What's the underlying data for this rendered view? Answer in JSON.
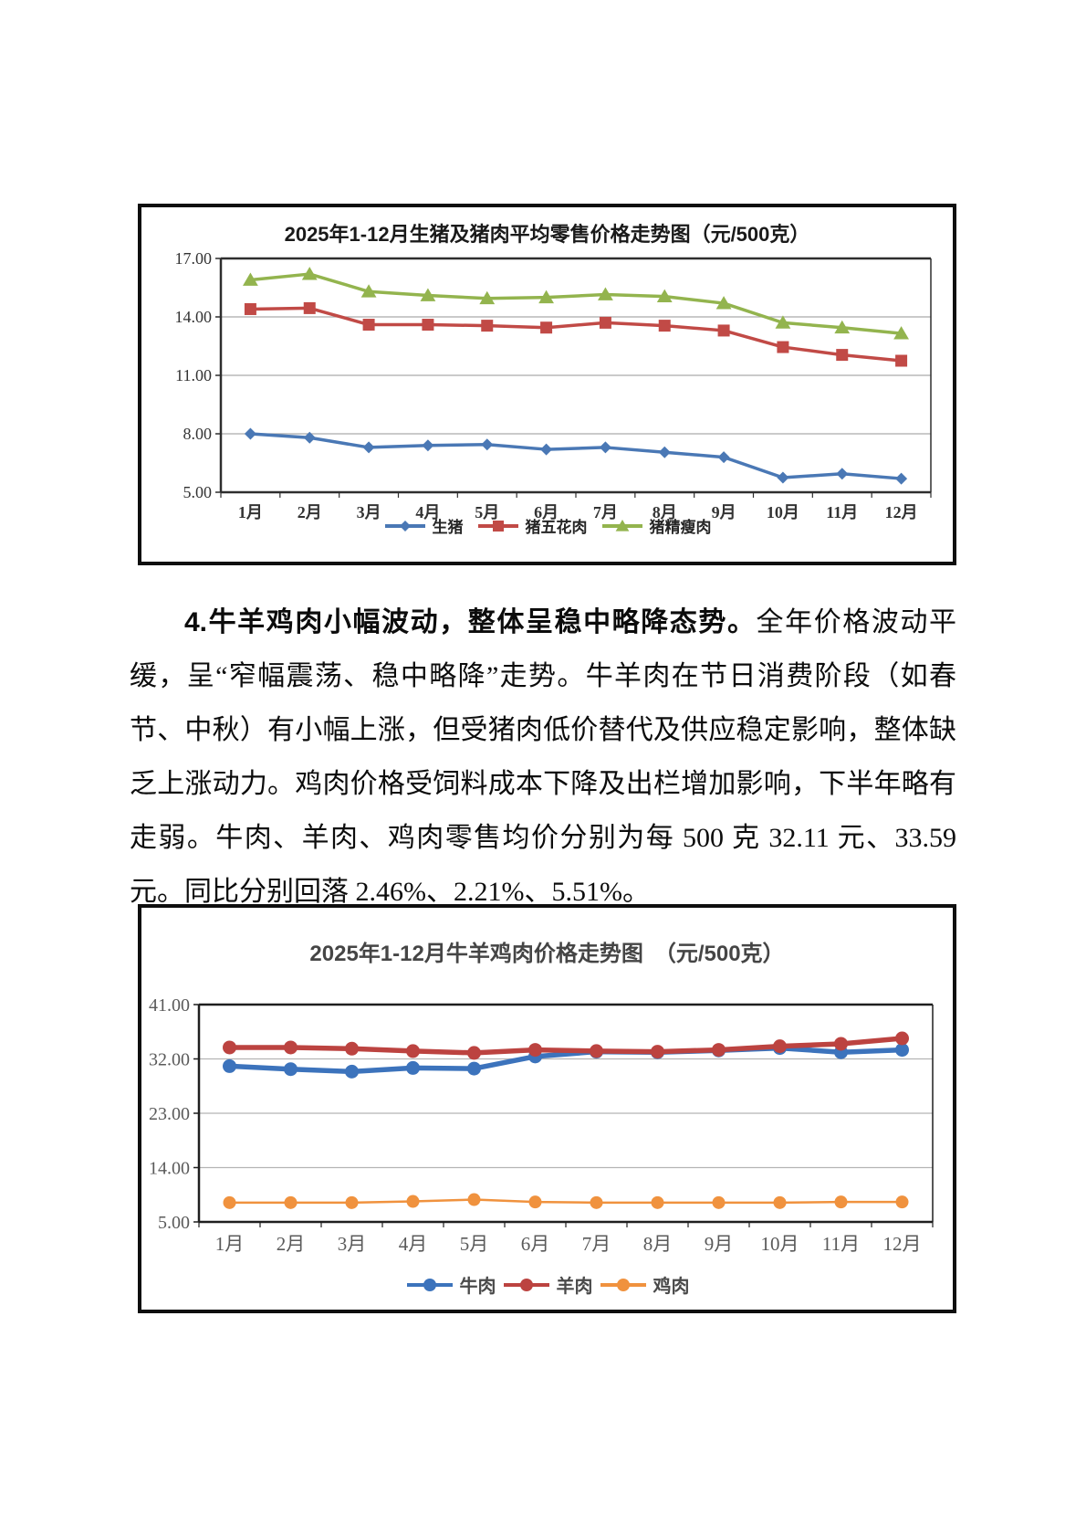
{
  "paragraph": {
    "bold_lead": "4.牛羊鸡肉小幅波动，整体呈稳中略降态势。",
    "body": "全年价格波动平缓，呈“窄幅震荡、稳中略降”走势。牛羊肉在节日消费阶段（如春节、中秋）有小幅上涨，但受猪肉低价替代及供应稳定影响，整体缺乏上涨动力。鸡肉价格受饲料成本下降及出栏增加影响，下半年略有走弱。牛肉、羊肉、鸡肉零售均价分别为每 500 克 32.11 元、33.59 元。同比分别回落 2.46%、2.21%、5.51%。"
  },
  "chart_data": [
    {
      "type": "line",
      "title": "2025年1-12月生猪及猪肉平均零售价格走势图（元/500克）",
      "categories": [
        "1月",
        "2月",
        "3月",
        "4月",
        "5月",
        "6月",
        "7月",
        "8月",
        "9月",
        "10月",
        "11月",
        "12月"
      ],
      "yticks": [
        "17.00",
        "14.00",
        "11.00",
        "8.00",
        "5.00"
      ],
      "ylim": [
        5,
        17
      ],
      "grid": true,
      "legend_position": "bottom",
      "series": [
        {
          "name": "生猪",
          "color": "#4A78B5",
          "marker": "diamond",
          "values": [
            8.0,
            7.8,
            7.3,
            7.4,
            7.45,
            7.2,
            7.3,
            7.05,
            6.8,
            5.75,
            5.95,
            5.7
          ]
        },
        {
          "name": "猪五花肉",
          "color": "#C14A46",
          "marker": "square",
          "values": [
            14.4,
            14.45,
            13.6,
            13.6,
            13.55,
            13.45,
            13.7,
            13.55,
            13.3,
            12.45,
            12.05,
            11.75
          ]
        },
        {
          "name": "猪精瘦肉",
          "color": "#93B44E",
          "marker": "triangle",
          "values": [
            15.9,
            16.2,
            15.3,
            15.1,
            14.95,
            15.0,
            15.15,
            15.05,
            14.7,
            13.7,
            13.45,
            13.15
          ]
        }
      ]
    },
    {
      "type": "line",
      "title": "2025年1-12月牛羊鸡肉价格走势图　（元/500克）",
      "categories": [
        "1月",
        "2月",
        "3月",
        "4月",
        "5月",
        "6月",
        "7月",
        "8月",
        "9月",
        "10月",
        "11月",
        "12月"
      ],
      "yticks": [
        "41.00",
        "32.00",
        "23.00",
        "14.00",
        "5.00"
      ],
      "ylim": [
        5,
        41
      ],
      "grid": true,
      "legend_position": "bottom",
      "series": [
        {
          "name": "牛肉",
          "color": "#3C73BC",
          "marker": "circle",
          "values": [
            30.8,
            30.3,
            29.9,
            30.5,
            30.4,
            32.4,
            33.2,
            33.1,
            33.4,
            33.8,
            33.1,
            33.5
          ]
        },
        {
          "name": "羊肉",
          "color": "#BC4340",
          "marker": "circle",
          "values": [
            33.9,
            33.9,
            33.7,
            33.3,
            33.0,
            33.5,
            33.3,
            33.2,
            33.5,
            34.1,
            34.5,
            35.4
          ]
        },
        {
          "name": "鸡肉",
          "color": "#F0923E",
          "marker": "circle",
          "values": [
            8.2,
            8.2,
            8.2,
            8.4,
            8.7,
            8.3,
            8.2,
            8.2,
            8.2,
            8.2,
            8.3,
            8.3
          ]
        }
      ]
    }
  ]
}
